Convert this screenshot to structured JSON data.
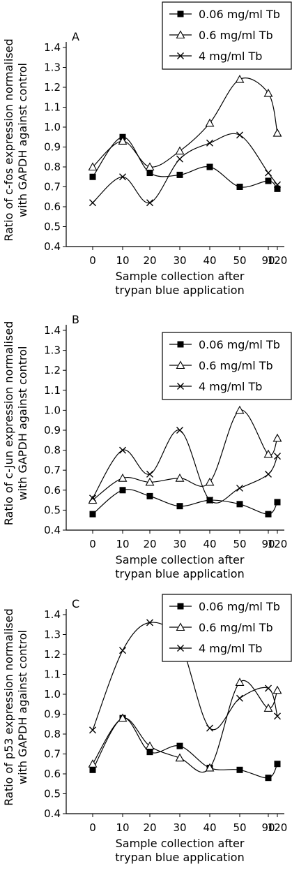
{
  "chart_data": [
    {
      "type": "line",
      "panel_label": "A",
      "xlabel_lines": [
        "Sample collection after",
        "trypan blue application"
      ],
      "ylabel_lines": [
        "Ratio of c-fos expression normalised",
        "with GAPDH against control"
      ],
      "categories": [
        "0",
        "10",
        "20",
        "30",
        "40",
        "50",
        "90",
        "120"
      ],
      "ylim": [
        0.4,
        1.4
      ],
      "yticks": [
        "0.4",
        "0.5",
        "0.6",
        "0.7",
        "0.8",
        "0.9",
        "1.0",
        "1.1",
        "1.2",
        "1.3",
        "1.4"
      ],
      "legend_position": "top-right",
      "series": [
        {
          "name": "0.06 mg/ml Tb",
          "marker": "square",
          "values": [
            0.75,
            0.95,
            0.77,
            0.76,
            0.8,
            0.7,
            0.73,
            0.69
          ]
        },
        {
          "name": "0.6 mg/ml Tb",
          "marker": "triangle",
          "values": [
            0.8,
            0.93,
            0.8,
            0.88,
            1.02,
            1.24,
            1.17,
            0.97
          ]
        },
        {
          "name": "4 mg/ml Tb",
          "marker": "cross",
          "values": [
            0.62,
            0.75,
            0.62,
            0.84,
            0.92,
            0.96,
            0.77,
            0.71
          ]
        }
      ]
    },
    {
      "type": "line",
      "panel_label": "B",
      "xlabel_lines": [
        "Sample collection after",
        "trypan blue application"
      ],
      "ylabel_lines": [
        "Ratio of c-Jun expression normalised",
        "with GAPDH against control"
      ],
      "categories": [
        "0",
        "10",
        "20",
        "30",
        "40",
        "50",
        "90",
        "120"
      ],
      "ylim": [
        0.4,
        1.4
      ],
      "yticks": [
        "0.4",
        "0.5",
        "0.6",
        "0.7",
        "0.8",
        "0.9",
        "1.0",
        "1.1",
        "1.2",
        "1.3",
        "1.4"
      ],
      "legend_position": "right",
      "series": [
        {
          "name": "0.06 mg/ml Tb",
          "marker": "square",
          "values": [
            0.48,
            0.6,
            0.57,
            0.52,
            0.55,
            0.53,
            0.48,
            0.54
          ]
        },
        {
          "name": "0.6 mg/ml Tb",
          "marker": "triangle",
          "values": [
            0.55,
            0.66,
            0.64,
            0.66,
            0.64,
            1.0,
            0.78,
            0.86
          ]
        },
        {
          "name": "4 mg/ml Tb",
          "marker": "cross",
          "values": [
            0.56,
            0.8,
            0.68,
            0.9,
            0.55,
            0.61,
            0.68,
            0.77
          ]
        }
      ]
    },
    {
      "type": "line",
      "panel_label": "C",
      "xlabel_lines": [
        "Sample collection after",
        "trypan blue application"
      ],
      "ylabel_lines": [
        "Ratio of p53 expression normalised",
        "with GAPDH against control"
      ],
      "categories": [
        "0",
        "10",
        "20",
        "30",
        "40",
        "50",
        "90",
        "120"
      ],
      "ylim": [
        0.4,
        1.4
      ],
      "yticks": [
        "0.4",
        "0.5",
        "0.6",
        "0.7",
        "0.8",
        "0.9",
        "1.0",
        "1.1",
        "1.2",
        "1.3",
        "1.4"
      ],
      "legend_position": "top-right",
      "series": [
        {
          "name": "0.06 mg/ml Tb",
          "marker": "square",
          "values": [
            0.62,
            0.88,
            0.71,
            0.74,
            0.63,
            0.62,
            0.58,
            0.65
          ]
        },
        {
          "name": "0.6 mg/ml Tb",
          "marker": "triangle",
          "values": [
            0.65,
            0.88,
            0.74,
            0.68,
            0.63,
            1.06,
            0.93,
            1.02
          ]
        },
        {
          "name": "4 mg/ml Tb",
          "marker": "cross",
          "values": [
            0.82,
            1.22,
            1.36,
            1.26,
            0.83,
            0.98,
            1.03,
            0.89
          ]
        }
      ]
    }
  ]
}
